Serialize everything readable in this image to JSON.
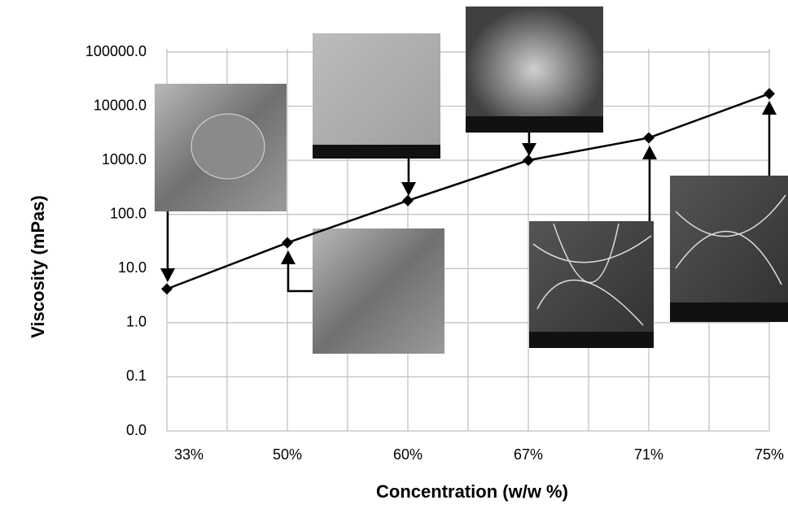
{
  "chart_data": {
    "type": "line",
    "x_label": "Concentration (w/w %)",
    "y_label": "Viscosity (mPas)",
    "categories": [
      "33%",
      "50%",
      "60%",
      "67%",
      "71%",
      "75%"
    ],
    "series": [
      {
        "color": "#000000",
        "values": [
          4.2,
          30,
          180,
          1000,
          2600,
          17000
        ]
      }
    ],
    "log_scale": true,
    "ylim": [
      0.01,
      100000
    ],
    "yticks": [
      {
        "value": 0.01,
        "label": "0.0"
      },
      0.1,
      {
        "value": 1,
        "label": "1.0"
      },
      {
        "value": 10,
        "label": "10.0"
      },
      {
        "value": 100,
        "label": "100.0"
      },
      {
        "value": 1000,
        "label": "1000.0"
      },
      {
        "value": 10000,
        "label": "10000.0"
      },
      {
        "value": 100000,
        "label": "100000.0"
      }
    ],
    "grid": true
  }
}
